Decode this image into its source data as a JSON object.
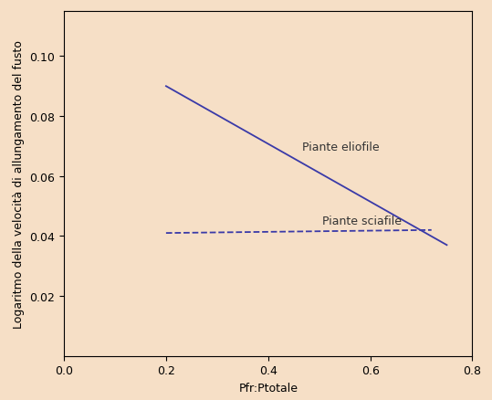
{
  "chart_data": {
    "type": "line",
    "x_label": "Pfr:Ptotale",
    "y_label": "Logaritmo della velocità di allungamento del fusto",
    "series": [
      {
        "name": "Piante eliofile",
        "color": "#3a3aa8",
        "line_style": "solid",
        "x": [
          0.2,
          0.75
        ],
        "values": [
          0.09,
          0.037
        ]
      },
      {
        "name": "Piante sciafile",
        "color": "#3a3aa8",
        "line_style": "dashed",
        "x": [
          0.2,
          0.72
        ],
        "values": [
          0.041,
          0.042
        ]
      }
    ],
    "xlim": [
      0,
      0.8
    ],
    "xticks": [
      0.0,
      0.2,
      0.4,
      0.6,
      0.8
    ],
    "ylim": [
      0,
      0.115
    ],
    "yticks": [
      0.02,
      0.04,
      0.06,
      0.08,
      {
        "value": 0.1,
        "label": "0.10"
      }
    ],
    "grid": false
  }
}
